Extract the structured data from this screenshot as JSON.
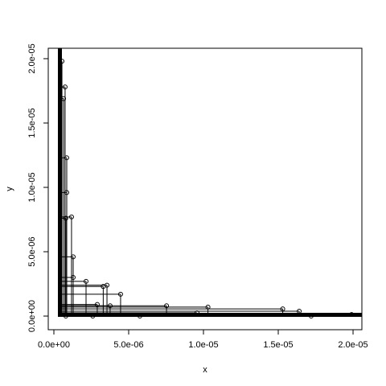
{
  "chart_data": {
    "type": "scatter",
    "x_label": "x",
    "y_label": "y",
    "x": [
      5.4e-07,
      7.5e-07,
      6.5e-07,
      8.6e-07,
      8.6e-07,
      1.18e-06,
      8e-07,
      1.29e-06,
      1.29e-06,
      2.15e-06,
      3.55e-06,
      3.3e-06,
      4.46e-06,
      2.9e-06,
      3.76e-06,
      7.53e-06,
      1.03e-05,
      1.53e-05,
      1.64e-05,
      1.99e-05,
      9.57e-06,
      5.75e-06,
      2.6e-06,
      8e-07,
      1.72e-05
    ],
    "values": [
      1.98e-05,
      1.78e-05,
      1.69e-05,
      1.23e-05,
      9.6e-06,
      7.7e-06,
      7.6e-06,
      4.6e-06,
      3e-06,
      2.7e-06,
      2.4e-06,
      2.3e-06,
      1.7e-06,
      9e-07,
      8e-07,
      8e-07,
      7e-07,
      5.6e-07,
      3.8e-07,
      1.2e-07,
      2.5e-07,
      0,
      0,
      0,
      0
    ],
    "color": "#000000",
    "xlim": [
      -3.76e-07,
      2.059e-05
    ],
    "ylim": [
      -1.06e-06,
      2.081e-05
    ],
    "xticks": [
      {
        "value": 0,
        "label": "0.0e+00"
      },
      {
        "value": 5e-06,
        "label": "5.0e-06"
      },
      {
        "value": 1e-05,
        "label": "1.0e-05"
      },
      {
        "value": 1.5e-05,
        "label": "1.5e-05"
      },
      {
        "value": 2e-05,
        "label": "2.0e-05"
      }
    ],
    "yticks": [
      {
        "value": 0,
        "label": "0.0e+00"
      },
      {
        "value": 5e-06,
        "label": "5.0e-06"
      },
      {
        "value": 1e-05,
        "label": "1.0e-05"
      },
      {
        "value": 1.5e-05,
        "label": "1.5e-05"
      },
      {
        "value": 2e-05,
        "label": "2.0e-05"
      }
    ]
  }
}
